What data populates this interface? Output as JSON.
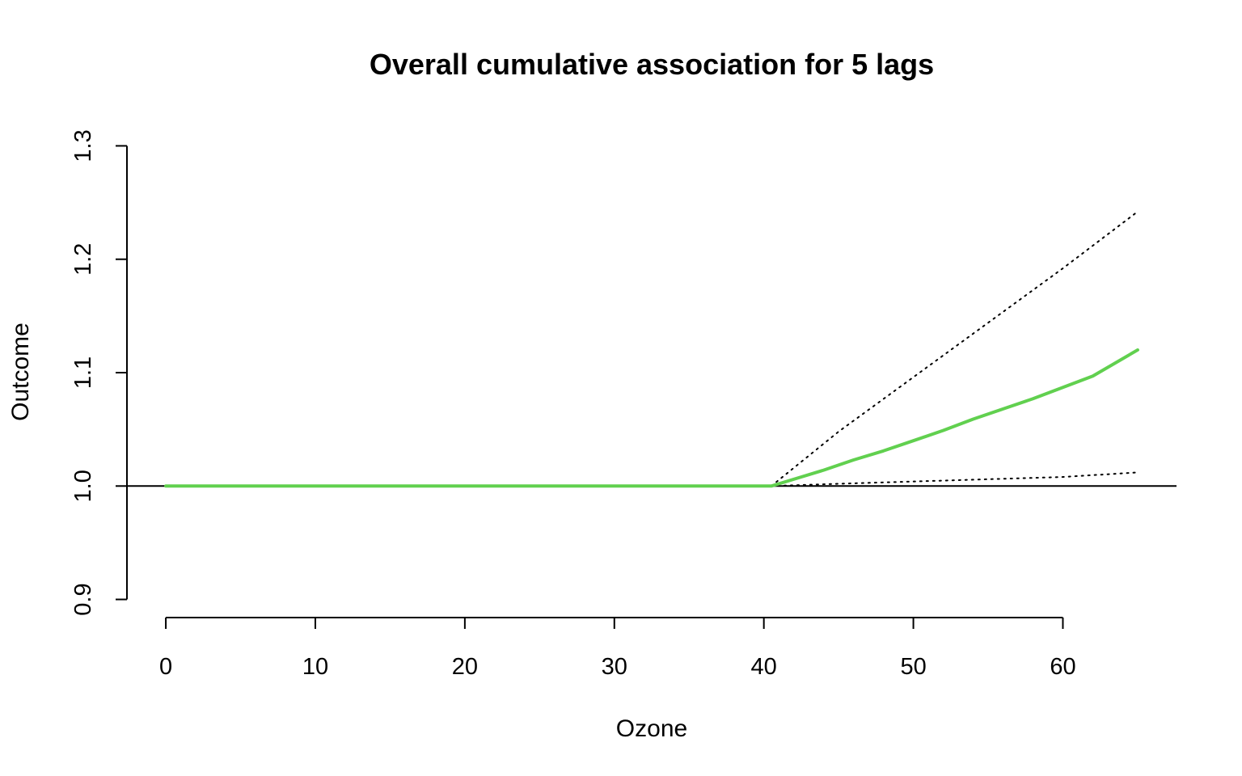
{
  "chart_data": {
    "type": "line",
    "title": "Overall cumulative association for 5 lags",
    "xlabel": "Ozone",
    "ylabel": "Outcome",
    "xlim": [
      -2.6,
      67.6
    ],
    "ylim": [
      0.884,
      1.316
    ],
    "x_ticks": [
      0,
      10,
      20,
      30,
      40,
      50,
      60
    ],
    "x_tick_labels": [
      "0",
      "10",
      "20",
      "30",
      "40",
      "50",
      "60"
    ],
    "y_ticks": [
      0.9,
      1.0,
      1.1,
      1.2,
      1.3
    ],
    "y_tick_labels": [
      "0.9",
      "1.0",
      "1.1",
      "1.2",
      "1.3"
    ],
    "reference_line": 1.0,
    "grid": false,
    "series": [
      {
        "role": "estimate",
        "color": "#61d04f",
        "style": "solid",
        "x": [
          0,
          10,
          20,
          30,
          40.5,
          42,
          44,
          46,
          48,
          50,
          52,
          54,
          56,
          58,
          60,
          62,
          65
        ],
        "y": [
          1.0,
          1.0,
          1.0,
          1.0,
          1.0,
          1.006,
          1.014,
          1.023,
          1.031,
          1.04,
          1.049,
          1.059,
          1.068,
          1.077,
          1.087,
          1.097,
          1.12
        ]
      },
      {
        "role": "upper-ci",
        "color": "#000000",
        "style": "dotted",
        "x": [
          40.5,
          45,
          50,
          55,
          60,
          65
        ],
        "y": [
          1.0,
          1.048,
          1.096,
          1.144,
          1.192,
          1.242
        ]
      },
      {
        "role": "lower-ci",
        "color": "#000000",
        "style": "dotted",
        "x": [
          40.5,
          45,
          50,
          55,
          60,
          65
        ],
        "y": [
          1.0,
          1.002,
          1.004,
          1.006,
          1.008,
          1.012
        ]
      }
    ]
  }
}
